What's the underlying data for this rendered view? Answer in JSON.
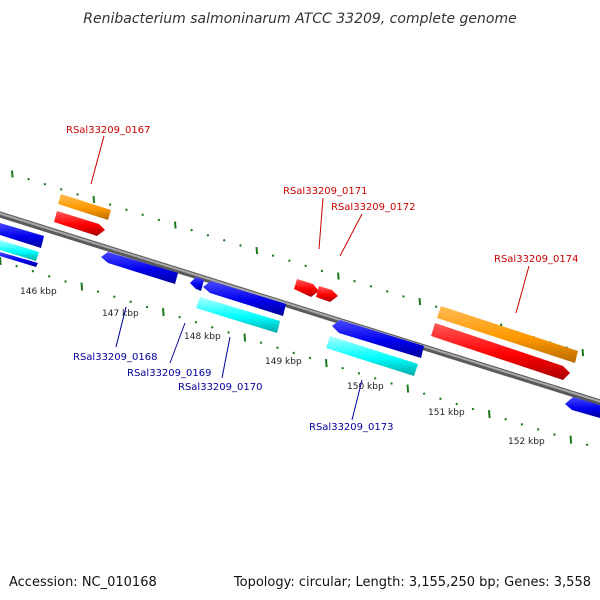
{
  "title": "Renibacterium salmoninarum ATCC 33209, complete genome",
  "accession": "Accession: NC_010168",
  "summary": "Topology: circular; Length: 3,155,250 bp; Genes: 3,558",
  "colors": {
    "backbone": "#7f7f7f",
    "ruler_dots": "#1a7a1a",
    "top_label": "#cc0000",
    "bottom_label": "#000099",
    "gene_red": "#ff0000",
    "gene_orange": "#ff9900",
    "gene_blue": "#0000ee",
    "gene_cyan": "#00ffff"
  },
  "scale_ticks": [
    {
      "label": "146 kbp"
    },
    {
      "label": "147 kbp"
    },
    {
      "label": "148 kbp"
    },
    {
      "label": "149 kbp"
    },
    {
      "label": "150 kbp"
    },
    {
      "label": "151 kbp"
    },
    {
      "label": "152 kbp"
    }
  ],
  "gene_labels_top": [
    {
      "text": "RSal33209_0167"
    },
    {
      "text": "RSal33209_0171"
    },
    {
      "text": "RSal33209_0172"
    },
    {
      "text": "RSal33209_0174"
    }
  ],
  "gene_labels_bottom": [
    {
      "text": "RSal33209_0168"
    },
    {
      "text": "RSal33209_0169"
    },
    {
      "text": "RSal33209_0170"
    },
    {
      "text": "RSal33209_0173"
    }
  ]
}
